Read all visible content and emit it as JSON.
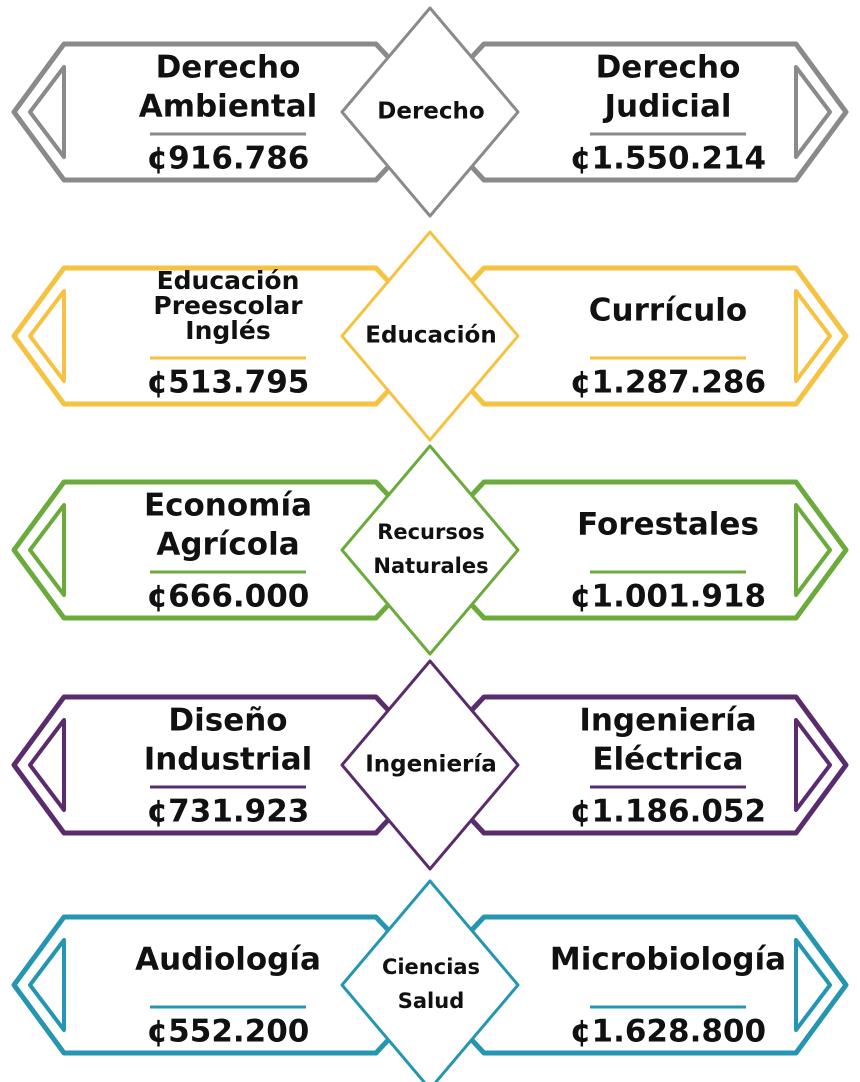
{
  "rows": [
    {
      "color": "#8a8a8a",
      "center": [
        "Derecho"
      ],
      "left": {
        "name": [
          "Derecho",
          "Ambiental"
        ],
        "amount": "¢916.786"
      },
      "right": {
        "name": [
          "Derecho",
          "Judicial"
        ],
        "amount": "¢1.550.214"
      }
    },
    {
      "color": "#f5c242",
      "center": [
        "Educación"
      ],
      "left": {
        "name": [
          "Educación",
          "Preescolar",
          "Inglés"
        ],
        "amount": "¢513.795"
      },
      "right": {
        "name": [
          "Currículo"
        ],
        "amount": "¢1.287.286"
      }
    },
    {
      "color": "#6aab3c",
      "center": [
        "Recursos",
        "Naturales"
      ],
      "left": {
        "name": [
          "Economía",
          "Agrícola"
        ],
        "amount": "¢666.000"
      },
      "right": {
        "name": [
          "Forestales"
        ],
        "amount": "¢1.001.918"
      }
    },
    {
      "color": "#5a2c6e",
      "center": [
        "Ingeniería"
      ],
      "left": {
        "name": [
          "Diseño",
          "Industrial"
        ],
        "amount": "¢731.923"
      },
      "right": {
        "name": [
          "Ingeniería",
          "Eléctrica"
        ],
        "amount": "¢1.186.052"
      }
    },
    {
      "color": "#2496b2",
      "center": [
        "Ciencias",
        "Salud"
      ],
      "left": {
        "name": [
          "Audiología"
        ],
        "amount": "¢552.200"
      },
      "right": {
        "name": [
          "Microbiología"
        ],
        "amount": "¢1.628.800"
      }
    }
  ]
}
